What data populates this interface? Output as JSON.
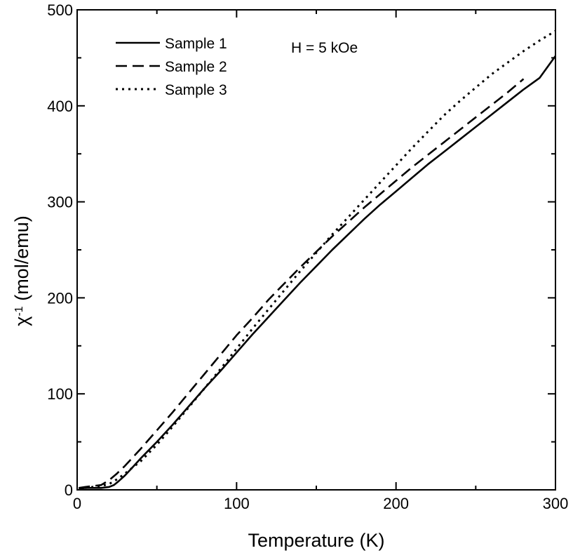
{
  "chart_data": {
    "type": "line",
    "xlabel": "Temperature (K)",
    "ylabel_main": "χ",
    "ylabel_sup": "-1",
    "ylabel_rest": " (mol/emu)",
    "xlim": [
      0,
      300
    ],
    "ylim": [
      0,
      500
    ],
    "xticks": [
      0,
      100,
      200,
      300
    ],
    "yticks": [
      0,
      100,
      200,
      300,
      400,
      500
    ],
    "x_minor_step": 50,
    "y_minor_step": 50,
    "grid": false,
    "legend_position": "top-left",
    "annotation": "H = 5 kOe",
    "series": [
      {
        "name": "Sample 1",
        "style": "solid",
        "x": [
          1,
          5,
          10,
          15,
          20,
          23,
          26,
          30,
          35,
          40,
          50,
          60,
          70,
          80,
          90,
          100,
          110,
          120,
          130,
          140,
          150,
          160,
          170,
          180,
          190,
          200,
          210,
          220,
          230,
          240,
          250,
          260,
          270,
          280,
          290,
          300
        ],
        "y": [
          1,
          2,
          2,
          2,
          3,
          5,
          9,
          15,
          24,
          33,
          50,
          68,
          87,
          106,
          124,
          143,
          162,
          180,
          198,
          216,
          233,
          250,
          266,
          282,
          297,
          311,
          325,
          339,
          352,
          365,
          378,
          391,
          404,
          417,
          429,
          452
        ]
      },
      {
        "name": "Sample 2",
        "style": "dashed",
        "x": [
          1,
          5,
          10,
          15,
          20,
          25,
          30,
          40,
          50,
          60,
          70,
          80,
          90,
          100,
          110,
          120,
          130,
          140,
          150,
          160,
          170,
          180,
          190,
          200,
          210,
          220,
          230,
          240,
          250,
          260,
          270,
          280
        ],
        "y": [
          2,
          3,
          4,
          5,
          10,
          17,
          25,
          43,
          62,
          81,
          101,
          121,
          141,
          161,
          179,
          198,
          215,
          232,
          248,
          264,
          279,
          294,
          308,
          322,
          336,
          349,
          362,
          375,
          388,
          401,
          414,
          428
        ]
      },
      {
        "name": "Sample 3",
        "style": "dotted",
        "x": [
          1,
          5,
          10,
          15,
          20,
          25,
          30,
          40,
          50,
          60,
          70,
          80,
          90,
          100,
          110,
          120,
          130,
          140,
          150,
          160,
          170,
          180,
          190,
          200,
          210,
          220,
          230,
          240,
          250,
          260,
          270,
          280,
          290,
          300
        ],
        "y": [
          1,
          2,
          3,
          4,
          6,
          11,
          17,
          30,
          47,
          66,
          86,
          106,
          126,
          147,
          168,
          188,
          208,
          228,
          247,
          266,
          284,
          302,
          320,
          338,
          356,
          373,
          390,
          405,
          419,
          433,
          445,
          457,
          468,
          478
        ]
      }
    ]
  }
}
